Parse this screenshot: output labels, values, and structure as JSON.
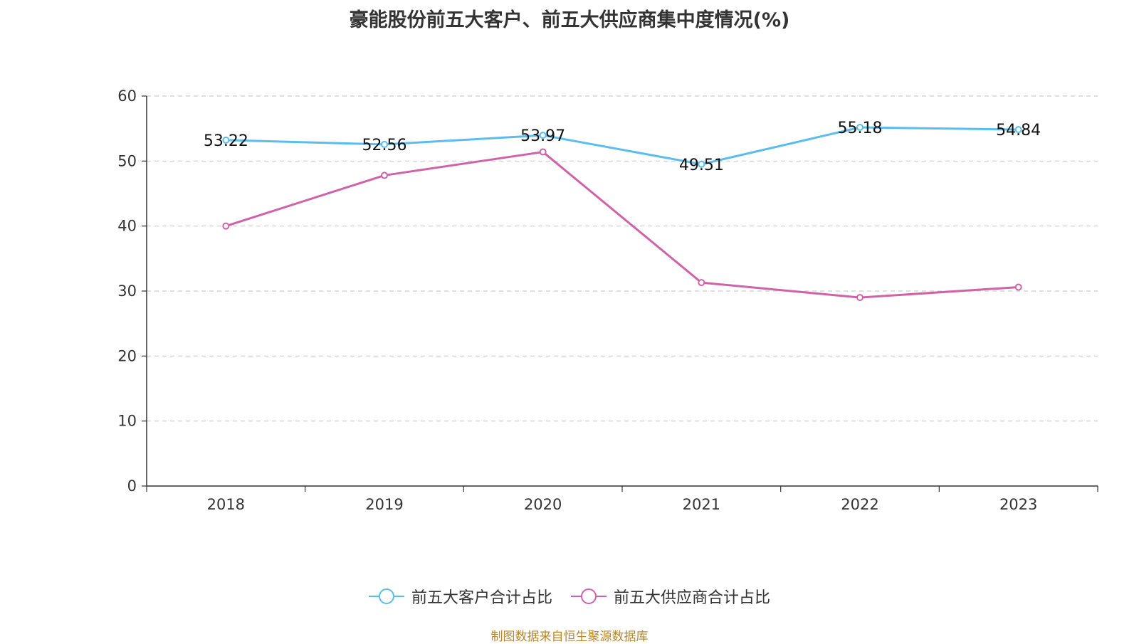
{
  "chart_data": {
    "type": "line",
    "title": "豪能股份前五大客户、前五大供应商集中度情况(%)",
    "categories": [
      "2018",
      "2019",
      "2020",
      "2021",
      "2022",
      "2023"
    ],
    "ylim": [
      0,
      60
    ],
    "yticks": [
      0,
      10,
      20,
      30,
      40,
      50,
      60
    ],
    "grid": true,
    "legend_position": "bottom",
    "series": [
      {
        "name": "前五大客户合计占比",
        "color": "#5bbcf0",
        "values": [
          53.22,
          52.56,
          53.97,
          49.51,
          55.18,
          54.84
        ],
        "show_labels": true
      },
      {
        "name": "前五大供应商合计占比",
        "color": "#d063a8",
        "values": [
          40.0,
          47.8,
          51.4,
          31.3,
          29.0,
          30.6
        ],
        "show_labels": false
      }
    ],
    "source": "制图数据来自恒生聚源数据库"
  }
}
